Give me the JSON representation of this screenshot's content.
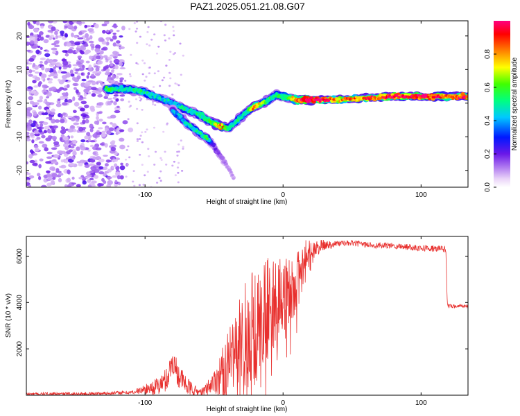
{
  "chart_data": [
    {
      "type": "heatmap",
      "title": "PAZ1.2025.051.21.08.G07",
      "xlabel": "Height of straight line (km)",
      "ylabel": "Frequency (Hz)",
      "xlim": [
        -186,
        134
      ],
      "ylim": [
        -25,
        24.5
      ],
      "x_ticks": [
        -100,
        0,
        100
      ],
      "y_ticks": [
        -20,
        -10,
        0,
        10,
        20
      ],
      "colorbar": {
        "label": "Normalized spectral amplitude",
        "range": [
          0.0,
          1.0
        ],
        "ticks": [
          "0.0",
          "0.2",
          "0.4",
          "0.6",
          "0.8"
        ],
        "colormap": [
          "#ffffff",
          "#e8c8f8",
          "#9a4cf0",
          "#5a10e0",
          "#0020ff",
          "#00c8ff",
          "#00ff80",
          "#40ff00",
          "#ffff00",
          "#ff8000",
          "#ff0000",
          "#ff0080"
        ]
      },
      "ridge": {
        "x": [
          -128,
          -120,
          -110,
          -100,
          -90,
          -80,
          -70,
          -60,
          -55,
          -50,
          -45,
          -40,
          -35,
          -30,
          -25,
          -20,
          -15,
          -10,
          -5,
          0,
          5,
          10,
          20,
          30,
          40,
          60,
          80,
          100,
          134
        ],
        "y": [
          4,
          4.2,
          4,
          3.2,
          1.5,
          0,
          -2,
          -3.5,
          -5,
          -6,
          -7,
          -7.5,
          -6,
          -4,
          -2,
          -1,
          0,
          1,
          2.5,
          2,
          1.5,
          1,
          1,
          1,
          1,
          1.5,
          2,
          2,
          2
        ],
        "amplitude": [
          0.6,
          0.5,
          0.5,
          0.5,
          0.45,
          0.45,
          0.5,
          0.5,
          0.55,
          0.6,
          0.9,
          0.55,
          0.5,
          0.5,
          0.55,
          0.9,
          0.6,
          0.55,
          0.5,
          0.55,
          0.6,
          0.9,
          1.0,
          0.9,
          0.8,
          0.85,
          0.95,
          0.95,
          0.9
        ]
      },
      "ridge_secondary": {
        "x": [
          -80,
          -70,
          -62,
          -55,
          -50,
          -45,
          -40,
          -35
        ],
        "y": [
          -2,
          -6,
          -8.5,
          -10.5,
          -13,
          -16,
          -19,
          -23
        ],
        "amplitude": [
          0.4,
          0.45,
          0.5,
          0.55,
          0.2,
          0.15,
          0.1,
          0.1
        ]
      },
      "noise_region_x": [
        -186,
        -116
      ]
    },
    {
      "type": "line",
      "xlabel": "Height of straight line (km)",
      "ylabel": "SNR (10 * v/v)",
      "xlim": [
        -186,
        134
      ],
      "ylim": [
        0,
        6850
      ],
      "x_ticks": [
        -100,
        0,
        100
      ],
      "y_ticks": [
        2000,
        4000,
        6000
      ],
      "color": "#e8302e",
      "trend": {
        "x": [
          -186,
          -140,
          -110,
          -100,
          -90,
          -84,
          -80,
          -76,
          -70,
          -64,
          -58,
          -50,
          -40,
          -32,
          -28,
          -24,
          -20,
          -16,
          -12,
          -8,
          -4,
          0,
          4,
          8,
          12,
          16,
          20,
          24,
          28,
          34,
          40,
          50,
          60,
          70,
          80,
          90,
          100,
          110,
          118,
          119,
          120,
          134
        ],
        "y": [
          50,
          60,
          120,
          250,
          400,
          700,
          1500,
          900,
          400,
          180,
          130,
          600,
          1200,
          1900,
          2400,
          2600,
          3300,
          3500,
          3700,
          3900,
          4100,
          4300,
          4500,
          4800,
          5200,
          5800,
          6150,
          6300,
          6450,
          6500,
          6550,
          6560,
          6500,
          6450,
          6450,
          6400,
          6350,
          6320,
          6300,
          3900,
          3850,
          3850
        ]
      },
      "noise_amplitude": {
        "x": [
          -186,
          -110,
          -100,
          -86,
          -78,
          -70,
          -60,
          -50,
          -40,
          -30,
          -20,
          -10,
          0,
          10,
          18,
          25,
          40,
          100,
          118,
          120,
          134
        ],
        "y": [
          60,
          80,
          200,
          500,
          600,
          400,
          150,
          500,
          1500,
          2400,
          2800,
          2200,
          1600,
          1300,
          900,
          300,
          120,
          140,
          150,
          80,
          80
        ]
      }
    }
  ]
}
